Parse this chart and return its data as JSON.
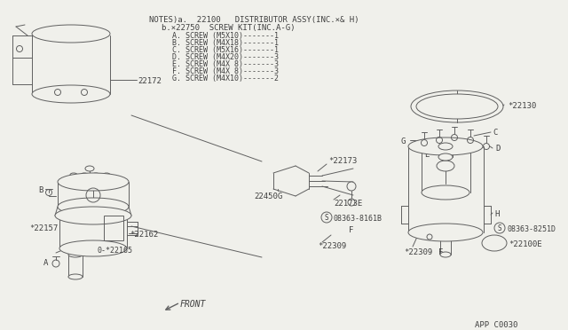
{
  "bg_color": "#f0f0eb",
  "line_color": "#606060",
  "text_color": "#404040",
  "title_line1": "NOTES)a.  22100   DISTRIBUTOR ASSY(INC.×& H)",
  "title_line2": "b.×22750  SCREW KIT(INC.A-G)",
  "screw_lines": [
    "A. SCREW (M5X10)-------1",
    "B. SCREW (M4X18)-------1",
    "C. SCREW (M5X16)-------1",
    "D. SCREW (M4X20)-------3",
    "E. SCREW (M4X 8)-------3",
    "F. SCREW (M4X 8)-------3",
    "G. SCREW (M4X10)-------2"
  ],
  "footer": "APP C0030",
  "front_label": "FRONT"
}
